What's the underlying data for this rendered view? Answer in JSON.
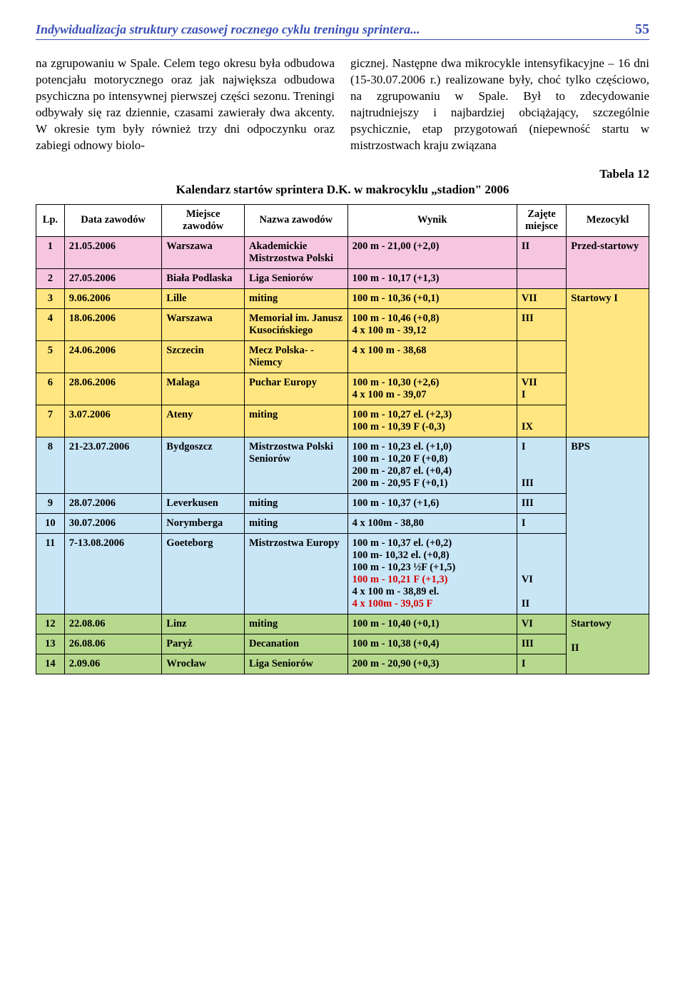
{
  "header": {
    "title": "Indywidualizacja struktury czasowej rocznego cyklu treningu sprintera...",
    "page_number": "55"
  },
  "body_text": {
    "col1": "na zgrupowaniu w Spale. Celem tego okresu była odbudowa potencjału motorycznego oraz jak największa odbudowa psychiczna po intensywnej pierwszej części sezonu. Treningi odbywały się raz dziennie, czasami zawierały dwa akcenty. W okresie tym były również trzy dni odpoczynku oraz zabiegi odnowy biolo-",
    "col2": "gicznej. Następne dwa mikrocykle intensyfikacyjne – 16 dni (15-30.07.2006 r.) realizowane były, choć tylko częściowo, na zgrupowaniu w Spale. Był to zdecydowanie najtrudniejszy i najbardziej obciążający, szczególnie psychicznie, etap przygotowań (niepewność startu w mistrzostwach kraju związana"
  },
  "table": {
    "caption_right": "Tabela 12",
    "caption_center": "Kalendarz startów sprintera D.K. w makrocyklu „stadion\" 2006",
    "headers": {
      "lp": "Lp.",
      "date": "Data zawodów",
      "place": "Miejsce zawodów",
      "event": "Nazwa zawodów",
      "result": "Wynik",
      "pos": "Zajęte miejsce",
      "mezo": "Mezocykl"
    },
    "colors": {
      "pink": "#f6c6e0",
      "yellow": "#ffe680",
      "blue": "#c9e6f7",
      "green": "#b7d98e",
      "header_bg": "#ffffff"
    },
    "rows": [
      {
        "bg": "pink",
        "lp": "1",
        "date": "21.05.2006",
        "place": "Warszawa",
        "event": "Akademickie Mistrzostwa Polski",
        "result": "200 m - 21,00 (+2,0)",
        "pos": "II",
        "mezo": "Przed-startowy",
        "mezo_rowspan": 2
      },
      {
        "bg": "pink",
        "lp": "2",
        "date": "27.05.2006",
        "place": "Biała Podlaska",
        "event": "Liga Seniorów",
        "result": "100 m - 10,17 (+1,3)",
        "pos": ""
      },
      {
        "bg": "yellow",
        "lp": "3",
        "date": "9.06.2006",
        "place": "Lille",
        "event": "miting",
        "result": "100 m - 10,36 (+0,1)",
        "pos": "VII",
        "mezo": "Startowy I",
        "mezo_rowspan": 5
      },
      {
        "bg": "yellow",
        "lp": "4",
        "date": "18.06.2006",
        "place": "Warszawa",
        "event": "Memoriał im. Janusz Kusocińskiego",
        "result": "100 m - 10,46 (+0,8)\n4 x 100 m - 39,12",
        "pos": "III"
      },
      {
        "bg": "yellow",
        "lp": "5",
        "date": "24.06.2006",
        "place": "Szczecin",
        "event": "Mecz Polska- -Niemcy",
        "result": "4 x 100 m - 38,68",
        "pos": ""
      },
      {
        "bg": "yellow",
        "lp": "6",
        "date": "28.06.2006",
        "place": "Malaga",
        "event": "Puchar Europy",
        "result": "100 m - 10,30 (+2,6)\n4 x 100 m - 39,07",
        "pos": "VII\nI"
      },
      {
        "bg": "yellow",
        "lp": "7",
        "date": "3.07.2006",
        "place": "Ateny",
        "event": "miting",
        "result": "100 m - 10,27 el. (+2,3)\n100 m - 10,39  F (-0,3)",
        "pos": "\nIX"
      },
      {
        "bg": "blue",
        "lp": "8",
        "date": "21-23.07.2006",
        "place": "Bydgoszcz",
        "event": "Mistrzostwa Polski Seniorów",
        "result": "100 m - 10,23 el. (+1,0)\n100 m - 10,20  F (+0,8)\n200 m - 20,87 el. (+0,4)\n200 m - 20,95  F (+0,1)",
        "pos": "I\n\n\nIII",
        "mezo": "BPS",
        "mezo_rowspan": 4
      },
      {
        "bg": "blue",
        "lp": "9",
        "date": "28.07.2006",
        "place": "Leverkusen",
        "event": "miting",
        "result": "100 m - 10,37 (+1,6)",
        "pos": "III"
      },
      {
        "bg": "blue",
        "lp": "10",
        "date": "30.07.2006",
        "place": "Norymberga",
        "event": "miting",
        "result": "4 x 100m - 38,80",
        "pos": "I"
      },
      {
        "bg": "blue",
        "lp": "11",
        "date": "7-13.08.2006",
        "place": "Goeteborg",
        "event": "Mistrzostwa Europy",
        "result_plain": "100 m - 10,37 el. (+0,2)\n100 m- 10,32 el. (+0,8)\n100 m - 10,23 ½F (+1,5)",
        "result_red1": "100 m - 10,21 F (+1,3)",
        "result_plain2": "4 x 100 m - 38,89 el.",
        "result_red2": "4 x 100m - 39,05 F",
        "pos": "\n\n\nVI\n\nII",
        "special": true
      },
      {
        "bg": "green",
        "lp": "12",
        "date": "22.08.06",
        "place": "Linz",
        "event": "miting",
        "result": "100 m - 10,40 (+0,1)",
        "pos": "VI",
        "mezo": "Startowy",
        "mezo_rowspan": 3
      },
      {
        "bg": "green",
        "lp": "13",
        "date": "26.08.06",
        "place": "Paryż",
        "event": "Decanation",
        "result": "100 m - 10,38 (+0,4)",
        "pos": "III",
        "mezo2": "II"
      },
      {
        "bg": "green",
        "lp": "14",
        "date": "2.09.06",
        "place": "Wrocław",
        "event": "Liga Seniorów",
        "result": "200 m - 20,90 (+0,3)",
        "pos": "I"
      }
    ]
  }
}
